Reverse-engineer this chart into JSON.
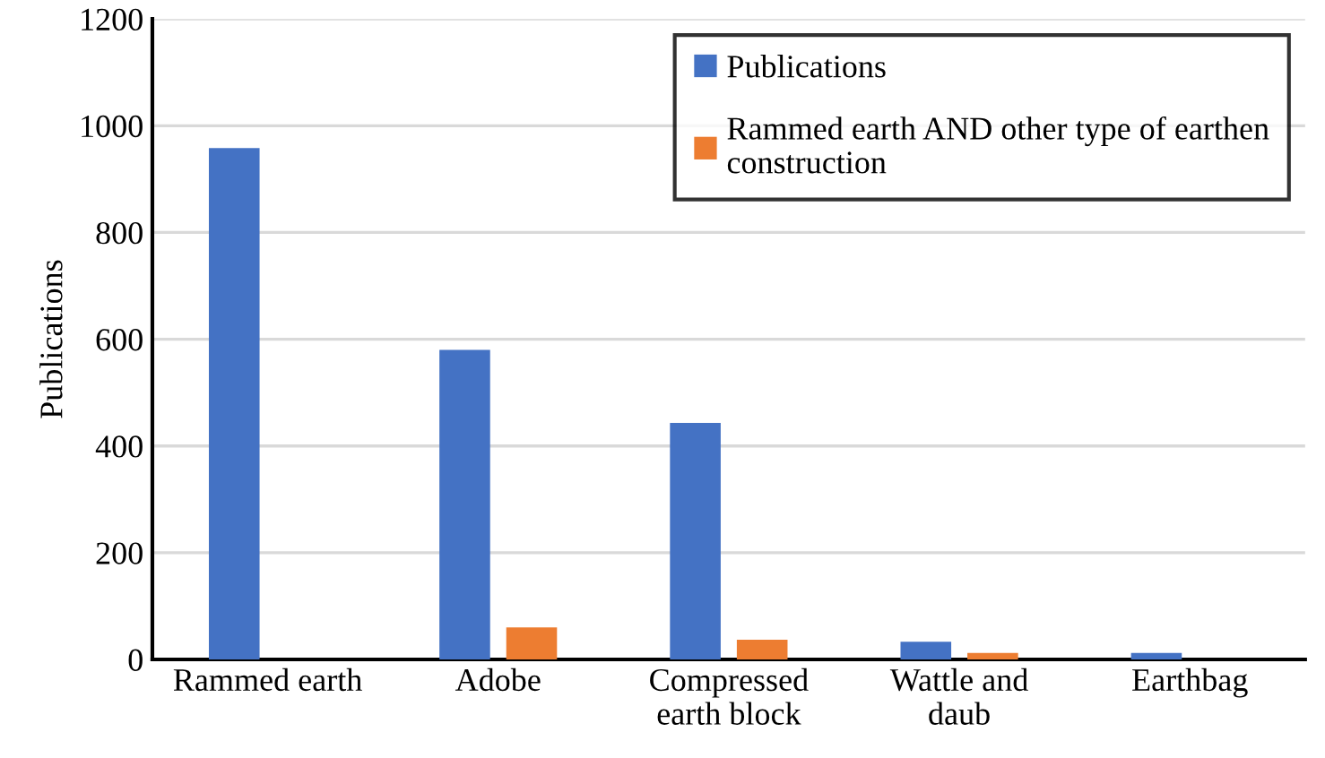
{
  "chart_data": {
    "type": "bar",
    "ylabel": "Publications",
    "categories": [
      "Rammed earth",
      "Adobe",
      "Compressed\nearth block",
      "Wattle and\ndaub",
      "Earthbag"
    ],
    "series": [
      {
        "name": "Publications",
        "color": "#4472c4",
        "values": [
          958,
          580,
          443,
          33,
          12
        ]
      },
      {
        "name": "Rammed earth AND other type of earthen\nconstruction",
        "color": "#ed7d31",
        "values": [
          0,
          60,
          37,
          12,
          0
        ]
      }
    ],
    "ylim": [
      0,
      1200
    ],
    "yticks": [
      0,
      200,
      400,
      600,
      800,
      1000,
      1200
    ],
    "grid": "y",
    "legend": "top right"
  }
}
